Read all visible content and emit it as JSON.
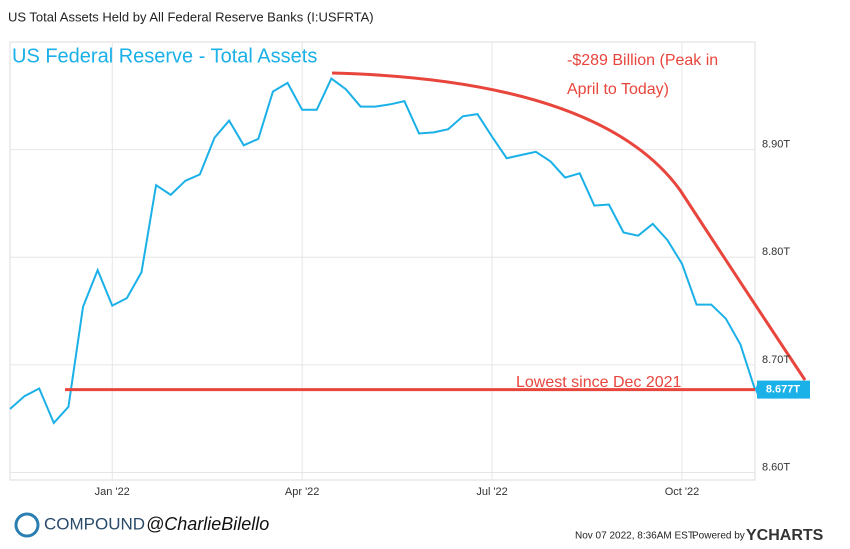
{
  "header": {
    "title": "US Total Assets Held by All Federal Reserve Banks (I:USFRTA)"
  },
  "chart_data": {
    "type": "line",
    "categories": [
      null,
      null,
      null,
      null,
      null,
      null,
      null,
      "Jan '22",
      null,
      null,
      null,
      null,
      null,
      null,
      null,
      null,
      null,
      null,
      null,
      null,
      "Apr '22",
      null,
      null,
      null,
      null,
      null,
      null,
      null,
      null,
      null,
      null,
      null,
      null,
      "Jul '22",
      null,
      null,
      null,
      null,
      null,
      null,
      null,
      null,
      null,
      null,
      null,
      null,
      "Oct '22",
      null,
      null,
      null,
      null,
      null
    ],
    "series": [
      {
        "name": "US Total Assets Held by All Federal Reserve Banks",
        "color": "#1ab0e8",
        "values": [
          8.659,
          8.671,
          8.678,
          8.646,
          8.661,
          8.754,
          8.788,
          8.755,
          8.762,
          8.786,
          8.867,
          8.858,
          8.871,
          8.877,
          8.911,
          8.927,
          8.904,
          8.91,
          8.954,
          8.962,
          8.937,
          8.937,
          8.966,
          8.956,
          8.94,
          8.94,
          8.942,
          8.945,
          8.915,
          8.916,
          8.919,
          8.931,
          8.933,
          8.912,
          8.892,
          8.895,
          8.898,
          8.889,
          8.874,
          8.878,
          8.848,
          8.849,
          8.823,
          8.82,
          8.831,
          8.816,
          8.794,
          8.756,
          8.756,
          8.743,
          8.719,
          8.677
        ],
        "value_labels": [
          null,
          null,
          null,
          null,
          null,
          null,
          null,
          null,
          null,
          null,
          null,
          null,
          null,
          null,
          null,
          null,
          null,
          null,
          null,
          null,
          null,
          null,
          null,
          null,
          null,
          null,
          null,
          null,
          null,
          null,
          null,
          null,
          null,
          null,
          null,
          null,
          null,
          null,
          null,
          null,
          null,
          null,
          null,
          null,
          null,
          null,
          null,
          null,
          null,
          null,
          null,
          "8.677T"
        ]
      }
    ],
    "ylim": [
      8.593,
      9.0
    ],
    "yticks": [
      {
        "value": 8.6,
        "label": "8.60T"
      },
      {
        "value": 8.7,
        "label": "8.70T"
      },
      {
        "value": 8.8,
        "label": "8.80T"
      },
      {
        "value": 8.9,
        "label": "8.90T"
      }
    ],
    "grid": true,
    "annotations": {
      "title": "US Federal Reserve - Total Assets",
      "change": [
        "-$289 Billion (Peak in",
        "April to Today)"
      ],
      "low": "Lowest since Dec 2021"
    }
  },
  "footer": {
    "brand": "COMPOUND",
    "handle": "@CharlieBilello",
    "timestamp": "Nov 07 2022, 8:36AM EST.",
    "powered": "Powered by",
    "provider": "YCHARTS"
  }
}
